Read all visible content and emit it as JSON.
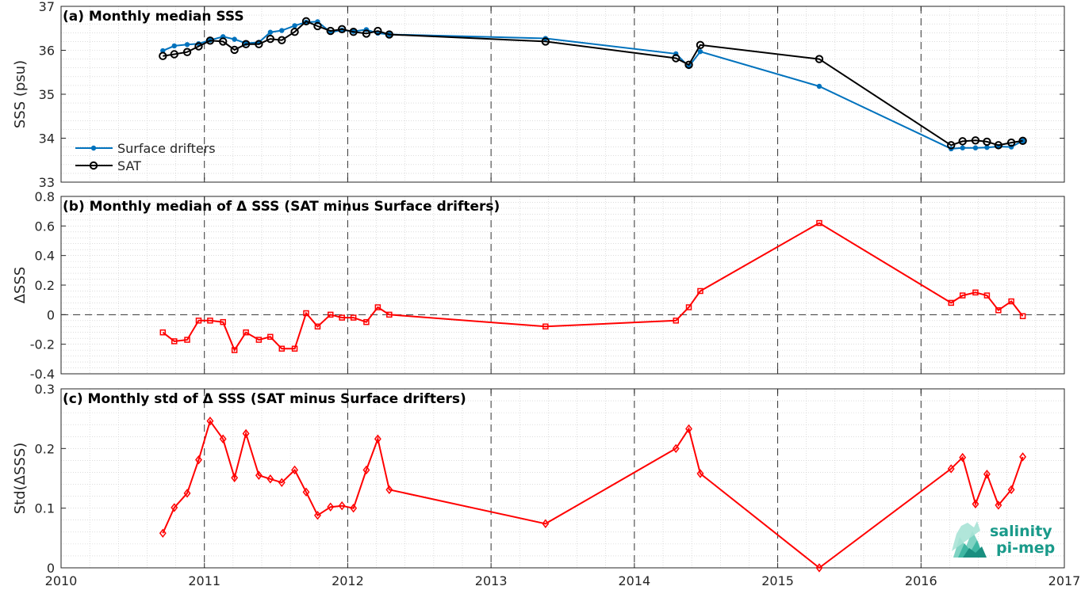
{
  "chart_data": [
    {
      "type": "line",
      "title": "(a) Monthly median SSS",
      "ylabel": "SSS (psu)",
      "xlabel": "",
      "xlim": [
        2010,
        2017
      ],
      "ylim": [
        33,
        37
      ],
      "yticks": [
        33,
        34,
        35,
        36,
        37
      ],
      "grid": true,
      "legend_position": "lower-left",
      "series": [
        {
          "name": "Surface drifters",
          "color": "#0072BD",
          "marker": "dot",
          "x": [
            2010.71,
            2010.79,
            2010.88,
            2010.96,
            2011.04,
            2011.13,
            2011.21,
            2011.29,
            2011.38,
            2011.46,
            2011.54,
            2011.63,
            2011.71,
            2011.79,
            2011.88,
            2011.96,
            2012.04,
            2012.13,
            2012.21,
            2012.29,
            2013.38,
            2014.29,
            2014.38,
            2014.46,
            2015.29,
            2016.21,
            2016.29,
            2016.38,
            2016.46,
            2016.54,
            2016.63,
            2016.71
          ],
          "y": [
            35.99,
            36.1,
            36.13,
            36.15,
            36.23,
            36.31,
            36.25,
            36.16,
            36.18,
            36.41,
            36.45,
            36.56,
            36.64,
            36.65,
            36.41,
            36.46,
            36.43,
            36.47,
            36.39,
            36.36,
            36.27,
            35.92,
            35.63,
            35.97,
            35.18,
            33.76,
            33.78,
            33.78,
            33.79,
            33.81,
            33.8,
            33.94
          ]
        },
        {
          "name": "SAT",
          "color": "#000000",
          "marker": "circle",
          "x": [
            2010.71,
            2010.79,
            2010.88,
            2010.96,
            2011.04,
            2011.13,
            2011.21,
            2011.29,
            2011.38,
            2011.46,
            2011.54,
            2011.63,
            2011.71,
            2011.79,
            2011.88,
            2011.96,
            2012.04,
            2012.13,
            2012.21,
            2012.29,
            2013.38,
            2014.29,
            2014.38,
            2014.46,
            2015.29,
            2016.21,
            2016.29,
            2016.38,
            2016.46,
            2016.54,
            2016.63,
            2016.71
          ],
          "y": [
            35.87,
            35.91,
            35.96,
            36.09,
            36.22,
            36.2,
            36.01,
            36.14,
            36.14,
            36.26,
            36.23,
            36.42,
            36.66,
            36.55,
            36.44,
            36.48,
            36.42,
            36.38,
            36.44,
            36.36,
            36.2,
            35.82,
            35.67,
            36.12,
            35.8,
            33.84,
            33.93,
            33.95,
            33.92,
            33.84,
            33.9,
            33.94
          ]
        }
      ]
    },
    {
      "type": "line",
      "title": "(b) Monthly median of Δ SSS (SAT minus Surface drifters)",
      "ylabel": "ΔSSS",
      "xlabel": "",
      "xlim": [
        2010,
        2017
      ],
      "ylim": [
        -0.4,
        0.8
      ],
      "yticks": [
        -0.4,
        -0.2,
        0,
        0.2,
        0.4,
        0.6,
        0.8
      ],
      "grid": true,
      "zero_line": true,
      "series": [
        {
          "color": "#FF0000",
          "marker": "square",
          "x": [
            2010.71,
            2010.79,
            2010.88,
            2010.96,
            2011.04,
            2011.13,
            2011.21,
            2011.29,
            2011.38,
            2011.46,
            2011.54,
            2011.63,
            2011.71,
            2011.79,
            2011.88,
            2011.96,
            2012.04,
            2012.13,
            2012.21,
            2012.29,
            2013.38,
            2014.29,
            2014.38,
            2014.46,
            2015.29,
            2016.21,
            2016.29,
            2016.38,
            2016.46,
            2016.54,
            2016.63,
            2016.71
          ],
          "y": [
            -0.12,
            -0.18,
            -0.17,
            -0.04,
            -0.04,
            -0.05,
            -0.24,
            -0.12,
            -0.17,
            -0.15,
            -0.23,
            -0.23,
            0.01,
            -0.08,
            0.0,
            -0.02,
            -0.02,
            -0.05,
            0.05,
            0.0,
            -0.08,
            -0.04,
            0.05,
            0.16,
            0.62,
            0.08,
            0.13,
            0.15,
            0.13,
            0.03,
            0.09,
            -0.01
          ]
        }
      ]
    },
    {
      "type": "line",
      "title": "(c) Monthly std of Δ SSS (SAT minus Surface drifters)",
      "ylabel": "Std(ΔSSS)",
      "xlabel": "",
      "xlim": [
        2010,
        2017
      ],
      "ylim": [
        0,
        0.3
      ],
      "yticks": [
        0,
        0.1,
        0.2,
        0.3
      ],
      "xticks": [
        2010,
        2011,
        2012,
        2013,
        2014,
        2015,
        2016,
        2017
      ],
      "grid": true,
      "series": [
        {
          "color": "#FF0000",
          "marker": "diamond",
          "x": [
            2010.71,
            2010.79,
            2010.88,
            2010.96,
            2011.04,
            2011.13,
            2011.21,
            2011.29,
            2011.38,
            2011.46,
            2011.54,
            2011.63,
            2011.71,
            2011.79,
            2011.88,
            2011.96,
            2012.04,
            2012.13,
            2012.21,
            2012.29,
            2013.38,
            2014.29,
            2014.38,
            2014.46,
            2015.29,
            2016.21,
            2016.29,
            2016.38,
            2016.46,
            2016.54,
            2016.63,
            2016.71
          ],
          "y": [
            0.058,
            0.101,
            0.125,
            0.181,
            0.246,
            0.216,
            0.151,
            0.225,
            0.155,
            0.149,
            0.143,
            0.164,
            0.127,
            0.088,
            0.102,
            0.104,
            0.1,
            0.164,
            0.216,
            0.131,
            0.074,
            0.2,
            0.233,
            0.158,
            0.0,
            0.166,
            0.185,
            0.107,
            0.157,
            0.105,
            0.131,
            0.186
          ]
        }
      ]
    }
  ],
  "logo": {
    "line1": "salinity",
    "line2": "pi-mep",
    "color": "#1a9a8a"
  }
}
